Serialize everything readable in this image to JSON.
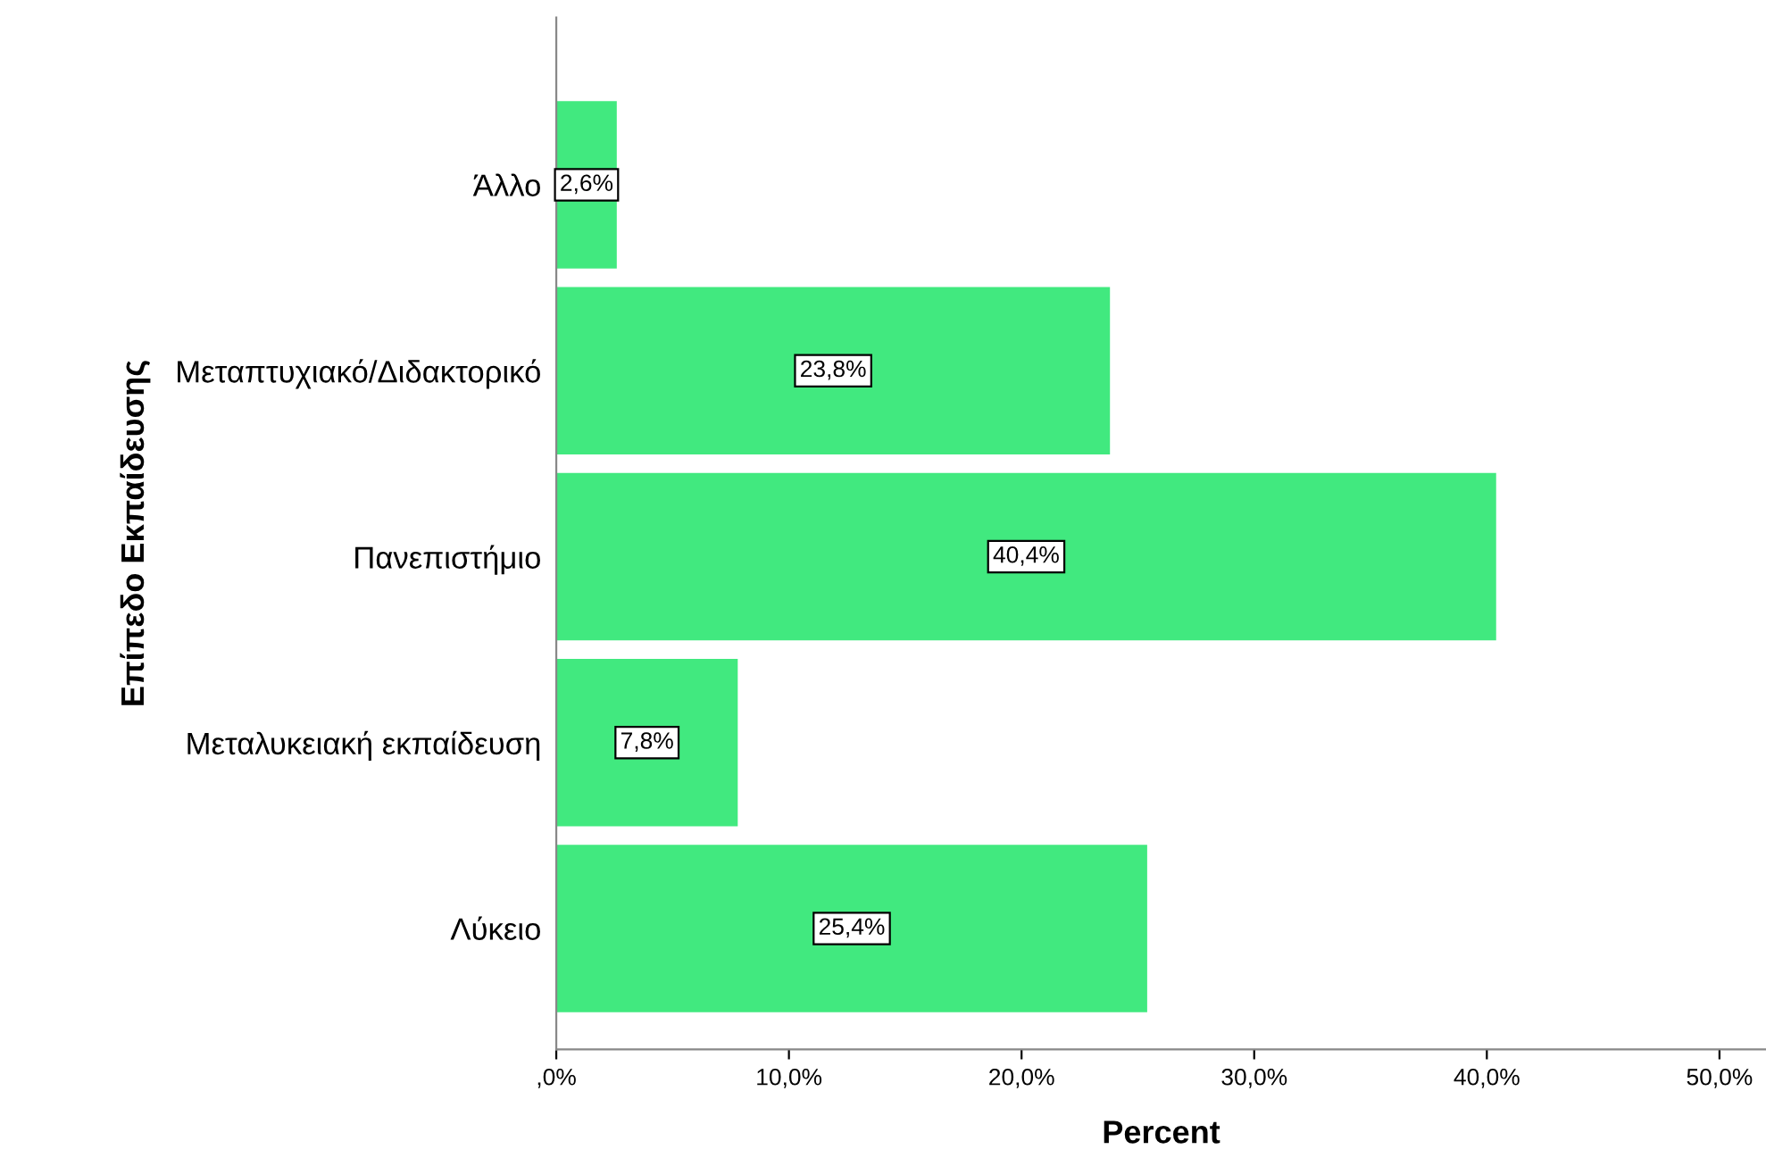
{
  "chart_data": {
    "type": "bar",
    "orientation": "horizontal",
    "xlabel": "Percent",
    "ylabel": "Επίπεδο Εκπαίδευσης",
    "categories": [
      "Άλλο",
      "Μεταπτυχιακό/Διδακτορικό",
      "Πανεπιστήμιο",
      "Μεταλυκειακή εκπαίδευση",
      "Λύκειο"
    ],
    "values": [
      2.6,
      23.8,
      40.4,
      7.8,
      25.4
    ],
    "value_labels": [
      "2,6%",
      "23,8%",
      "40,4%",
      "7,8%",
      "25,4%"
    ],
    "color": "#41e97f",
    "xlim": [
      0,
      52
    ],
    "xticks": [
      {
        "value": 0,
        "label": ",0%"
      },
      {
        "value": 10,
        "label": "10,0%"
      },
      {
        "value": 20,
        "label": "20,0%"
      },
      {
        "value": 30,
        "label": "30,0%"
      },
      {
        "value": 40,
        "label": "40,0%"
      },
      {
        "value": 50,
        "label": "50,0%"
      }
    ],
    "grid": false,
    "legend": false
  }
}
